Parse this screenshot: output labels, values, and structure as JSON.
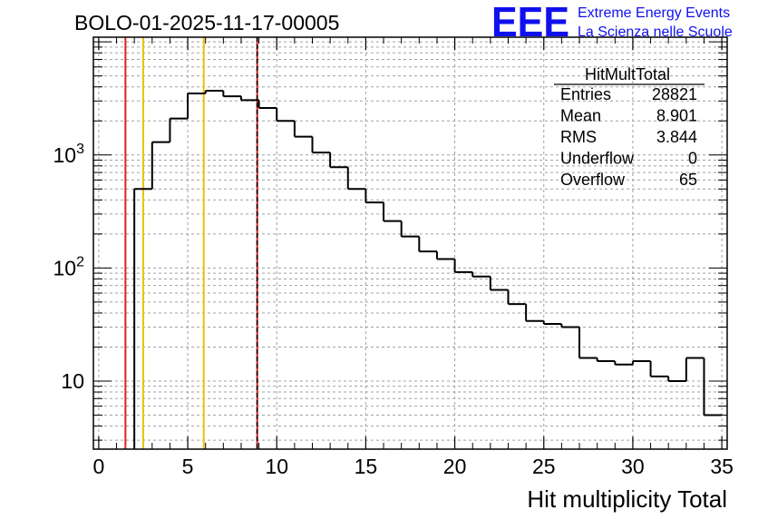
{
  "chart_data": {
    "type": "histogram",
    "title": "BOLO-01-2025-11-17-00005",
    "xlabel": "Hit multiplicity Total",
    "ylabel": "",
    "xlim": [
      -0.3,
      35.3
    ],
    "ylim": [
      2.5,
      11000
    ],
    "yscale": "log",
    "bin_width": 1,
    "x_ticks": [
      0,
      5,
      10,
      15,
      20,
      25,
      30,
      35
    ],
    "y_ticks": [
      {
        "value": 10,
        "base": "10",
        "exp": ""
      },
      {
        "value": 100,
        "base": "10",
        "exp": "2"
      },
      {
        "value": 1000,
        "base": "10",
        "exp": "3"
      }
    ],
    "bins": [
      {
        "x": 2.5,
        "count": 500
      },
      {
        "x": 3.5,
        "count": 1300
      },
      {
        "x": 4.5,
        "count": 2100
      },
      {
        "x": 5.5,
        "count": 3500
      },
      {
        "x": 6.5,
        "count": 3700
      },
      {
        "x": 7.5,
        "count": 3300
      },
      {
        "x": 8.5,
        "count": 3050
      },
      {
        "x": 9.5,
        "count": 2600
      },
      {
        "x": 10.5,
        "count": 2000
      },
      {
        "x": 11.5,
        "count": 1450
      },
      {
        "x": 12.5,
        "count": 1050
      },
      {
        "x": 13.5,
        "count": 780
      },
      {
        "x": 14.5,
        "count": 500
      },
      {
        "x": 15.5,
        "count": 380
      },
      {
        "x": 16.5,
        "count": 260
      },
      {
        "x": 17.5,
        "count": 190
      },
      {
        "x": 18.5,
        "count": 140
      },
      {
        "x": 19.5,
        "count": 120
      },
      {
        "x": 20.5,
        "count": 92
      },
      {
        "x": 21.5,
        "count": 84
      },
      {
        "x": 22.5,
        "count": 64
      },
      {
        "x": 23.5,
        "count": 48
      },
      {
        "x": 24.5,
        "count": 34
      },
      {
        "x": 25.5,
        "count": 32
      },
      {
        "x": 26.5,
        "count": 30
      },
      {
        "x": 27.5,
        "count": 16
      },
      {
        "x": 28.5,
        "count": 15
      },
      {
        "x": 29.5,
        "count": 14
      },
      {
        "x": 30.5,
        "count": 15
      },
      {
        "x": 31.5,
        "count": 11
      },
      {
        "x": 32.5,
        "count": 10
      },
      {
        "x": 33.5,
        "count": 16
      },
      {
        "x": 34.5,
        "count": 5
      }
    ],
    "vertical_lines": [
      {
        "x": 1.5,
        "color": "#e02020",
        "style": "solid"
      },
      {
        "x": 2.5,
        "color": "#f0c000",
        "style": "solid"
      },
      {
        "x": 5.9,
        "color": "#f0c000",
        "style": "solid"
      },
      {
        "x": 8.9,
        "color": "#e02020",
        "style": "solid"
      },
      {
        "x": 8.9,
        "color": "#000000",
        "style": "dashed"
      }
    ],
    "stats_box": {
      "title": "HitMultTotal",
      "rows": [
        {
          "label": "Entries",
          "value": "28821"
        },
        {
          "label": "Mean",
          "value": "8.901"
        },
        {
          "label": "RMS",
          "value": "3.844"
        },
        {
          "label": "Underflow",
          "value": "0"
        },
        {
          "label": "Overflow",
          "value": "65"
        }
      ]
    }
  },
  "brand": {
    "logo_text": "EEE",
    "line1": "Extreme Energy Events",
    "line2": "La Scienza nelle Scuole",
    "color": "#1010ee"
  }
}
